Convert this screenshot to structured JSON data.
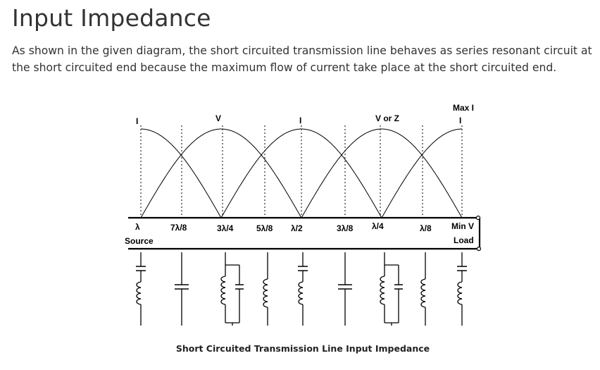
{
  "page": {
    "title": "Input Impedance",
    "paragraph": "As shown in the given diagram, the short circuited transmission line behaves as series resonant circuit at the short circuited end because the maximum flow of current take place at the short circuited end."
  },
  "figure": {
    "caption": "Short Circuited Transmission Line Input Impedance",
    "top_labels": {
      "i1": "I",
      "v1": "V",
      "i2": "I",
      "v2": "V or Z",
      "max_i": "Max I",
      "i3": "I"
    },
    "position_labels": [
      "λ",
      "7λ/8",
      "3λ/4",
      "5λ/8",
      "λ/2",
      "3λ/8",
      "λ/4",
      "λ/8",
      "Min V"
    ],
    "source_label": "Source",
    "load_label": "Load",
    "equivalent_circuits": [
      "series-lc",
      "capacitor",
      "parallel-lc",
      "inductor",
      "series-lc",
      "capacitor",
      "parallel-lc",
      "inductor",
      "series-lc"
    ]
  }
}
